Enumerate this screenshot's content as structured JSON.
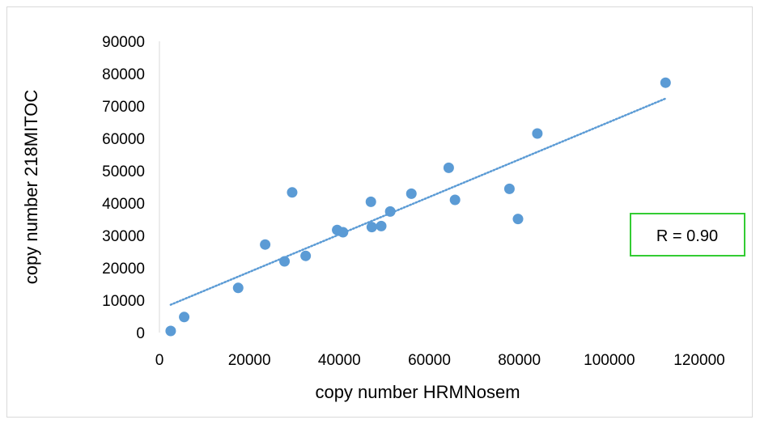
{
  "chart_data": {
    "type": "scatter",
    "title": "",
    "xlabel": "copy number HRMNosem",
    "ylabel": "copy number 218MITOC",
    "xlim": [
      0,
      120000
    ],
    "ylim": [
      0,
      90000
    ],
    "x_ticks": [
      0,
      20000,
      40000,
      60000,
      80000,
      100000,
      120000
    ],
    "y_ticks": [
      0,
      10000,
      20000,
      30000,
      40000,
      50000,
      60000,
      70000,
      80000,
      90000
    ],
    "x_tick_labels": [
      "0",
      "20000",
      "40000",
      "60000",
      "80000",
      "100000",
      "120000"
    ],
    "y_tick_labels": [
      "0",
      "10000",
      "20000",
      "30000",
      "40000",
      "50000",
      "60000",
      "70000",
      "80000",
      "90000"
    ],
    "grid": false,
    "point_color": "#5b9bd5",
    "trendline_color": "#5b9bd5",
    "annotation_border_color": "#33cc33",
    "series": [
      {
        "points": [
          {
            "x": 2500,
            "y": 500
          },
          {
            "x": 5500,
            "y": 4800
          },
          {
            "x": 17500,
            "y": 13800
          },
          {
            "x": 23500,
            "y": 27200
          },
          {
            "x": 27800,
            "y": 22000
          },
          {
            "x": 29500,
            "y": 43300
          },
          {
            "x": 32500,
            "y": 23700
          },
          {
            "x": 39500,
            "y": 31700
          },
          {
            "x": 40800,
            "y": 31000
          },
          {
            "x": 47000,
            "y": 40400
          },
          {
            "x": 47200,
            "y": 32600
          },
          {
            "x": 49300,
            "y": 32900
          },
          {
            "x": 51300,
            "y": 37400
          },
          {
            "x": 56000,
            "y": 42900
          },
          {
            "x": 64300,
            "y": 50900
          },
          {
            "x": 65700,
            "y": 41000
          },
          {
            "x": 77800,
            "y": 44400
          },
          {
            "x": 79700,
            "y": 35100
          },
          {
            "x": 84000,
            "y": 61500
          },
          {
            "x": 112500,
            "y": 77200
          }
        ]
      }
    ],
    "trendline": {
      "type": "linear",
      "style": "dotted",
      "from": {
        "x": 2500,
        "y": 8600
      },
      "to": {
        "x": 112500,
        "y": 72300
      }
    },
    "annotation": {
      "text": "R = 0.90"
    }
  }
}
